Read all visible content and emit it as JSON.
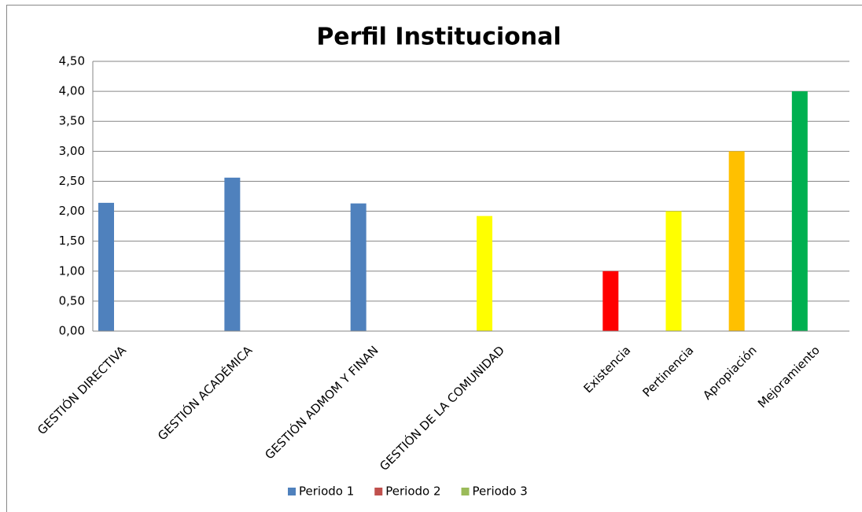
{
  "chart_data": {
    "type": "bar",
    "title": "Perfil Institucional",
    "categories": [
      "GESTIÓN DIRECTIVA",
      null,
      "GESTIÓN ACADÉMICA",
      null,
      "GESTIÓN ADMOM Y FINAN",
      null,
      "GESTIÓN DE LA COMUNIDAD",
      null,
      "Existencia",
      "Pertinencia",
      "Apropiación",
      "Mejoramiento"
    ],
    "series": [
      {
        "name": "Periodo 1",
        "color": "#4f81bd",
        "colors": [
          "#4f81bd",
          null,
          "#4f81bd",
          null,
          "#4f81bd",
          null,
          "#ffff00",
          null,
          "#ff0000",
          "#ffff00",
          "#ffc000",
          "#00b050"
        ],
        "values": [
          2.14,
          null,
          2.56,
          null,
          2.13,
          null,
          1.92,
          null,
          1.0,
          2.0,
          3.0,
          4.0
        ]
      },
      {
        "name": "Periodo 2",
        "color": "#c0504d",
        "values": [
          null,
          null,
          null,
          null,
          null,
          null,
          null,
          null,
          null,
          null,
          null,
          null
        ]
      },
      {
        "name": "Periodo 3",
        "color": "#9bbb59",
        "values": [
          null,
          null,
          null,
          null,
          null,
          null,
          null,
          null,
          null,
          null,
          null,
          null
        ]
      }
    ],
    "ylim": [
      0,
      4.5
    ],
    "yticks": [
      {
        "value": 0,
        "label": "0,00"
      },
      {
        "value": 0.5,
        "label": "0,50"
      },
      {
        "value": 1,
        "label": "1,00"
      },
      {
        "value": 1.5,
        "label": "1,50"
      },
      {
        "value": 2,
        "label": "2,00"
      },
      {
        "value": 2.5,
        "label": "2,50"
      },
      {
        "value": 3,
        "label": "3,00"
      },
      {
        "value": 3.5,
        "label": "3,50"
      },
      {
        "value": 4,
        "label": "4,00"
      },
      {
        "value": 4.5,
        "label": "4,50"
      }
    ],
    "grid": true,
    "legend": "bottom"
  }
}
